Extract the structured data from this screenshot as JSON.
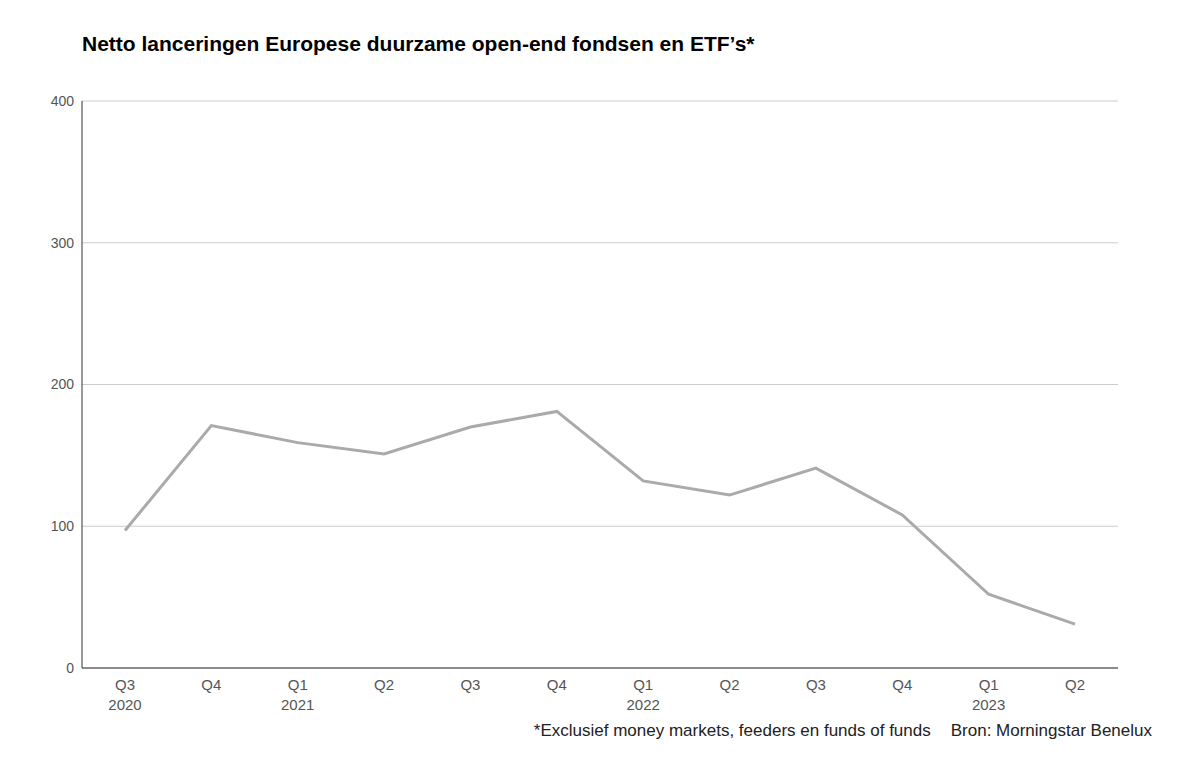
{
  "chart_data": {
    "type": "line",
    "title": "Netto lanceringen Europese duurzame open-end fondsen en ETF’s*",
    "footnote": "*Exclusief money markets, feeders en funds of funds",
    "source": "Bron: Morningstar Benelux",
    "categories": [
      "Q3\n2020",
      "Q4",
      "Q1\n2021",
      "Q2",
      "Q3",
      "Q4",
      "Q1\n2022",
      "Q2",
      "Q3",
      "Q4",
      "Q1\n2023",
      "Q2"
    ],
    "values": [
      97,
      171,
      159,
      151,
      170,
      181,
      132,
      122,
      141,
      108,
      52,
      31
    ],
    "color": "#aaaaaa",
    "ylim": [
      0,
      400
    ],
    "yticks": [
      0,
      100,
      200,
      300,
      400
    ],
    "grid": true
  }
}
